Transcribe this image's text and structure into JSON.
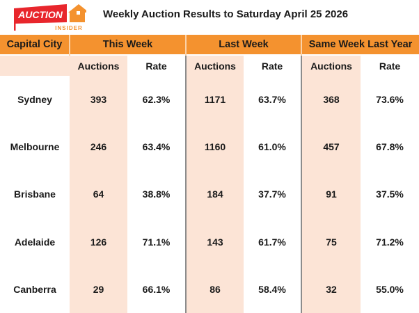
{
  "logo": {
    "text_main": "AUCTION",
    "text_sub": "INSIDER",
    "colors": {
      "red": "#E8262C",
      "orange": "#F4922F"
    }
  },
  "title": "Weekly Auction Results to Saturday April 25 2026",
  "headers": {
    "city": "Capital City",
    "this_week": "This Week",
    "last_week": "Last Week",
    "last_year": "Same Week Last Year"
  },
  "subheaders": {
    "auctions": "Auctions",
    "rate": "Rate"
  },
  "colors": {
    "header": "#F4922F",
    "peach": "#FCE4D6"
  },
  "rows": [
    {
      "city": "Sydney",
      "tw_auctions": "393",
      "tw_rate": "62.3%",
      "lw_auctions": "1171",
      "lw_rate": "63.7%",
      "ly_auctions": "368",
      "ly_rate": "73.6%"
    },
    {
      "city": "Melbourne",
      "tw_auctions": "246",
      "tw_rate": "63.4%",
      "lw_auctions": "1160",
      "lw_rate": "61.0%",
      "ly_auctions": "457",
      "ly_rate": "67.8%"
    },
    {
      "city": "Brisbane",
      "tw_auctions": "64",
      "tw_rate": "38.8%",
      "lw_auctions": "184",
      "lw_rate": "37.7%",
      "ly_auctions": "91",
      "ly_rate": "37.5%"
    },
    {
      "city": "Adelaide",
      "tw_auctions": "126",
      "tw_rate": "71.1%",
      "lw_auctions": "143",
      "lw_rate": "61.7%",
      "ly_auctions": "75",
      "ly_rate": "71.2%"
    },
    {
      "city": "Canberra",
      "tw_auctions": "29",
      "tw_rate": "66.1%",
      "lw_auctions": "86",
      "lw_rate": "58.4%",
      "ly_auctions": "32",
      "ly_rate": "55.0%"
    }
  ]
}
